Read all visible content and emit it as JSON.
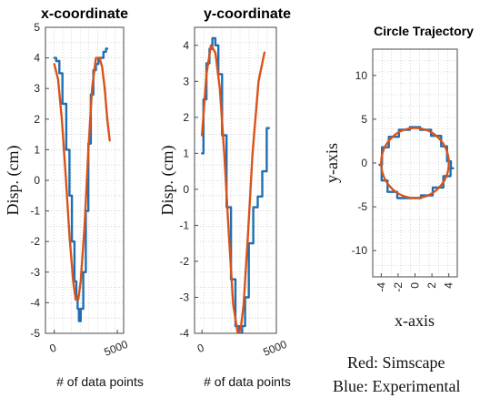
{
  "legend_note": {
    "red": "Red: Simscape",
    "blue": "Blue: Experimental"
  },
  "colors": {
    "simscape": "#d95319",
    "experimental": "#1f6fb2"
  },
  "chart_data": [
    {
      "type": "line",
      "title": "x-coordinate",
      "xlabel": "# of data points",
      "ylabel": "Disp. (cm)",
      "xlim": [
        -700,
        5500
      ],
      "ylim": [
        -5,
        5
      ],
      "xticks": [
        0,
        5000
      ],
      "yticks": [
        -5,
        -4,
        -3,
        -2,
        -1,
        0,
        1,
        2,
        3,
        4,
        5
      ],
      "grid": true,
      "series": [
        {
          "key": "experimental",
          "x": [
            0,
            300,
            500,
            800,
            1100,
            1300,
            1500,
            1700,
            1800,
            1900,
            2000,
            2200,
            2400,
            2600,
            2800,
            3000,
            3200,
            3400,
            3600,
            3800,
            4000,
            4200
          ],
          "y": [
            4.0,
            3.9,
            3.5,
            2.5,
            1.0,
            -0.5,
            -2.0,
            -3.3,
            -3.8,
            -4.2,
            -4.6,
            -4.2,
            -3.0,
            -1.0,
            1.2,
            2.8,
            3.6,
            3.8,
            4.0,
            4.0,
            4.2,
            4.3
          ]
        },
        {
          "key": "simscape",
          "x": [
            0,
            300,
            600,
            900,
            1200,
            1500,
            1700,
            1900,
            2100,
            2400,
            2700,
            3000,
            3300,
            3600,
            3800,
            4000,
            4200,
            4400
          ],
          "y": [
            3.8,
            3.3,
            2.0,
            0.2,
            -1.8,
            -3.3,
            -3.9,
            -3.9,
            -3.3,
            -1.5,
            1.0,
            3.0,
            4.0,
            4.0,
            3.7,
            3.0,
            2.0,
            1.3
          ]
        }
      ]
    },
    {
      "type": "line",
      "title": "y-coordinate",
      "xlabel": "# of data points",
      "ylabel": "Disp. (cm)",
      "xlim": [
        -500,
        5000
      ],
      "ylim": [
        -4,
        4.5
      ],
      "xticks": [
        0,
        5000
      ],
      "yticks": [
        -4,
        -3,
        -2,
        -1,
        0,
        1,
        2,
        3,
        4
      ],
      "grid": true,
      "series": [
        {
          "key": "experimental",
          "x": [
            0,
            200,
            400,
            600,
            800,
            1000,
            1200,
            1500,
            1800,
            2100,
            2400,
            2600,
            2800,
            3000,
            3300,
            3600,
            3900,
            4200,
            4500
          ],
          "y": [
            1.0,
            2.5,
            3.5,
            3.9,
            4.2,
            4.0,
            3.2,
            1.5,
            -0.5,
            -2.5,
            -3.8,
            -4.0,
            -3.8,
            -3.0,
            -1.5,
            -0.5,
            -0.2,
            0.5,
            1.7
          ]
        },
        {
          "key": "simscape",
          "x": [
            0,
            300,
            600,
            900,
            1200,
            1500,
            1800,
            2100,
            2400,
            2600,
            2800,
            3100,
            3400,
            3800,
            4200
          ],
          "y": [
            1.5,
            3.2,
            4.0,
            3.8,
            2.8,
            1.0,
            -1.2,
            -3.2,
            -4.0,
            -3.9,
            -3.2,
            -1.2,
            1.0,
            3.0,
            3.8
          ]
        }
      ]
    },
    {
      "type": "line",
      "title": "Circle Trajectory",
      "xlabel": "x-axis",
      "ylabel": "y-axis",
      "xlim": [
        -5,
        5
      ],
      "ylim": [
        -13,
        13
      ],
      "xticks": [
        -4,
        -2,
        0,
        2,
        4
      ],
      "yticks": [
        -10,
        -5,
        0,
        5,
        10
      ],
      "grid": true,
      "series": [
        {
          "key": "experimental",
          "x": [
            4.0,
            3.6,
            2.6,
            1.2,
            0.0,
            -1.2,
            -2.6,
            -3.6,
            -4.2,
            -3.7,
            -2.8,
            -1.4,
            0.0,
            1.4,
            2.8,
            3.9,
            4.5,
            4.0
          ],
          "y": [
            0.2,
            1.9,
            3.1,
            3.8,
            4.1,
            3.8,
            3.0,
            1.8,
            -0.2,
            -2.0,
            -3.3,
            -4.0,
            -4.0,
            -3.7,
            -2.8,
            -1.5,
            -0.6,
            0.2
          ]
        },
        {
          "key": "simscape",
          "circle": {
            "cx": 0,
            "cy": 0,
            "r": 4
          }
        }
      ]
    }
  ]
}
